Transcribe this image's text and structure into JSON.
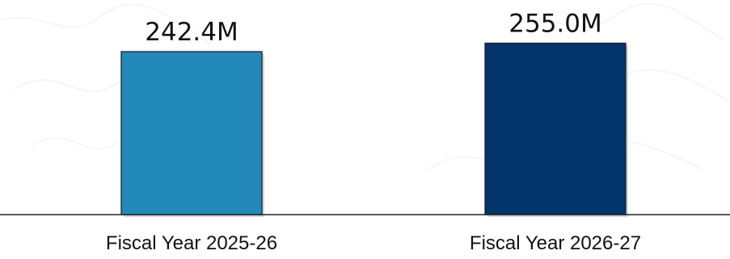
{
  "chart_data": {
    "type": "bar",
    "categories": [
      "Fiscal Year 2025-26",
      "Fiscal Year 2026-27"
    ],
    "values": [
      242.4,
      255.0
    ],
    "value_labels": [
      "242.4M",
      "255.0M"
    ],
    "title": "",
    "xlabel": "",
    "ylabel": "",
    "ylim": [
      0,
      300
    ],
    "grid": false,
    "legend": "none",
    "colors": [
      "#2389bb",
      "#00346b"
    ]
  }
}
